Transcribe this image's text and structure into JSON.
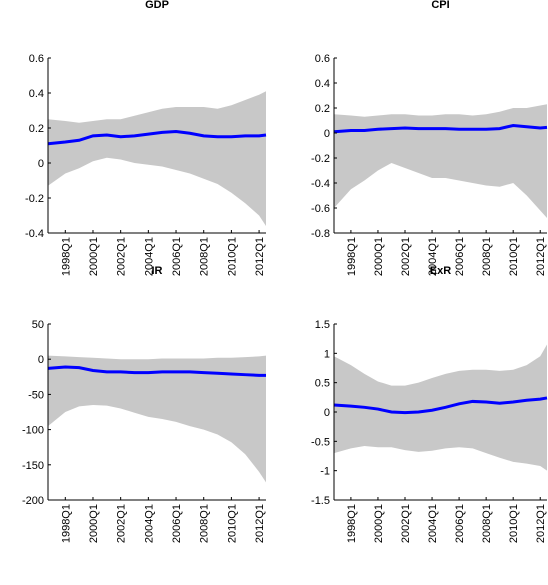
{
  "chart_data": [
    {
      "type": "band_line",
      "title": "GDP",
      "x": [
        1996.75,
        1998,
        1999,
        2000,
        2001,
        2002,
        2003,
        2004,
        2005,
        2006,
        2007,
        2008,
        2009,
        2010,
        2011,
        2012,
        2012.5
      ],
      "values": [
        0.11,
        0.12,
        0.13,
        0.155,
        0.16,
        0.15,
        0.155,
        0.165,
        0.175,
        0.18,
        0.17,
        0.155,
        0.15,
        0.15,
        0.155,
        0.155,
        0.16
      ],
      "band_upper": [
        0.25,
        0.24,
        0.23,
        0.24,
        0.25,
        0.25,
        0.27,
        0.29,
        0.31,
        0.32,
        0.32,
        0.32,
        0.31,
        0.33,
        0.36,
        0.39,
        0.41
      ],
      "band_lower": [
        -0.13,
        -0.06,
        -0.03,
        0.01,
        0.03,
        0.02,
        0.0,
        -0.01,
        -0.02,
        -0.04,
        -0.06,
        -0.09,
        -0.12,
        -0.17,
        -0.23,
        -0.3,
        -0.36
      ],
      "color": "#0000ff",
      "band_color": "#c8c8c8",
      "xlim": [
        1996.75,
        2012.5
      ],
      "xticks": [
        {
          "value": 1998,
          "label": "1998Q1"
        },
        {
          "value": 2000,
          "label": "2000Q1"
        },
        {
          "value": 2002,
          "label": "2002Q1"
        },
        {
          "value": 2004,
          "label": "2004Q1"
        },
        {
          "value": 2006,
          "label": "2006Q1"
        },
        {
          "value": 2008,
          "label": "2008Q1"
        },
        {
          "value": 2010,
          "label": "2010Q1"
        },
        {
          "value": 2012,
          "label": "2012Q1"
        }
      ],
      "ylim": [
        -0.4,
        0.6
      ],
      "yticks": [
        -0.4,
        -0.2,
        0,
        0.2,
        0.4,
        0.6
      ]
    },
    {
      "type": "band_line",
      "title": "CPI",
      "x": [
        1996.75,
        1998,
        1999,
        2000,
        2001,
        2002,
        2003,
        2004,
        2005,
        2006,
        2007,
        2008,
        2009,
        2010,
        2011,
        2012,
        2012.5
      ],
      "values": [
        0.01,
        0.02,
        0.02,
        0.03,
        0.035,
        0.04,
        0.035,
        0.035,
        0.035,
        0.03,
        0.03,
        0.03,
        0.035,
        0.06,
        0.05,
        0.04,
        0.045
      ],
      "band_upper": [
        0.15,
        0.14,
        0.13,
        0.14,
        0.15,
        0.15,
        0.14,
        0.14,
        0.15,
        0.15,
        0.14,
        0.15,
        0.17,
        0.2,
        0.2,
        0.22,
        0.23
      ],
      "band_lower": [
        -0.6,
        -0.45,
        -0.38,
        -0.3,
        -0.24,
        -0.28,
        -0.32,
        -0.36,
        -0.36,
        -0.38,
        -0.4,
        -0.42,
        -0.43,
        -0.4,
        -0.5,
        -0.62,
        -0.68
      ],
      "color": "#0000ff",
      "band_color": "#c8c8c8",
      "xlim": [
        1996.75,
        2012.5
      ],
      "xticks": [
        {
          "value": 1998,
          "label": "1998Q1"
        },
        {
          "value": 2000,
          "label": "2000Q1"
        },
        {
          "value": 2002,
          "label": "2002Q1"
        },
        {
          "value": 2004,
          "label": "2004Q1"
        },
        {
          "value": 2006,
          "label": "2006Q1"
        },
        {
          "value": 2008,
          "label": "2008Q1"
        },
        {
          "value": 2010,
          "label": "2010Q1"
        },
        {
          "value": 2012,
          "label": "2012Q1"
        }
      ],
      "ylim": [
        -0.8,
        0.6
      ],
      "yticks": [
        -0.8,
        -0.6,
        -0.4,
        -0.2,
        0,
        0.2,
        0.4,
        0.6
      ]
    },
    {
      "type": "band_line",
      "title": "IR",
      "x": [
        1996.75,
        1998,
        1999,
        2000,
        2001,
        2002,
        2003,
        2004,
        2005,
        2006,
        2007,
        2008,
        2009,
        2010,
        2011,
        2012,
        2012.5
      ],
      "values": [
        -13,
        -11,
        -12,
        -16,
        -18,
        -18,
        -19,
        -19,
        -18,
        -18,
        -18,
        -19,
        -20,
        -21,
        -22,
        -23,
        -23
      ],
      "band_upper": [
        5,
        4,
        3,
        2,
        1,
        0,
        0,
        0,
        1,
        1,
        1,
        1,
        2,
        2,
        3,
        4,
        5
      ],
      "band_lower": [
        -95,
        -75,
        -67,
        -65,
        -66,
        -70,
        -76,
        -82,
        -85,
        -89,
        -95,
        -100,
        -107,
        -118,
        -135,
        -160,
        -175
      ],
      "color": "#0000ff",
      "band_color": "#c8c8c8",
      "xlim": [
        1996.75,
        2012.5
      ],
      "xticks": [
        {
          "value": 1998,
          "label": "1998Q1"
        },
        {
          "value": 2000,
          "label": "2000Q1"
        },
        {
          "value": 2002,
          "label": "2002Q1"
        },
        {
          "value": 2004,
          "label": "2004Q1"
        },
        {
          "value": 2006,
          "label": "2006Q1"
        },
        {
          "value": 2008,
          "label": "2008Q1"
        },
        {
          "value": 2010,
          "label": "2010Q1"
        },
        {
          "value": 2012,
          "label": "2012Q1"
        }
      ],
      "ylim": [
        -200,
        50
      ],
      "yticks": [
        -200,
        -150,
        -100,
        -50,
        0,
        50
      ]
    },
    {
      "type": "band_line",
      "title": "ExR",
      "x": [
        1996.75,
        1998,
        1999,
        2000,
        2001,
        2002,
        2003,
        2004,
        2005,
        2006,
        2007,
        2008,
        2009,
        2010,
        2011,
        2012,
        2012.5
      ],
      "values": [
        0.12,
        0.1,
        0.08,
        0.05,
        0.0,
        -0.01,
        0.0,
        0.03,
        0.08,
        0.14,
        0.18,
        0.17,
        0.15,
        0.17,
        0.2,
        0.22,
        0.24
      ],
      "band_upper": [
        0.95,
        0.8,
        0.65,
        0.52,
        0.45,
        0.45,
        0.5,
        0.58,
        0.65,
        0.7,
        0.72,
        0.72,
        0.7,
        0.72,
        0.8,
        0.95,
        1.15
      ],
      "band_lower": [
        -0.7,
        -0.62,
        -0.58,
        -0.6,
        -0.6,
        -0.65,
        -0.68,
        -0.66,
        -0.62,
        -0.6,
        -0.62,
        -0.7,
        -0.78,
        -0.85,
        -0.88,
        -0.92,
        -1.0
      ],
      "color": "#0000ff",
      "band_color": "#c8c8c8",
      "xlim": [
        1996.75,
        2012.5
      ],
      "xticks": [
        {
          "value": 1998,
          "label": "1998Q1"
        },
        {
          "value": 2000,
          "label": "2000Q1"
        },
        {
          "value": 2002,
          "label": "2002Q1"
        },
        {
          "value": 2004,
          "label": "2004Q1"
        },
        {
          "value": 2006,
          "label": "2006Q1"
        },
        {
          "value": 2008,
          "label": "2008Q1"
        },
        {
          "value": 2010,
          "label": "2010Q1"
        },
        {
          "value": 2012,
          "label": "2012Q1"
        }
      ],
      "ylim": [
        -1.5,
        1.5
      ],
      "yticks": [
        -1.5,
        -1,
        -0.5,
        0,
        0.5,
        1,
        1.5
      ]
    }
  ]
}
